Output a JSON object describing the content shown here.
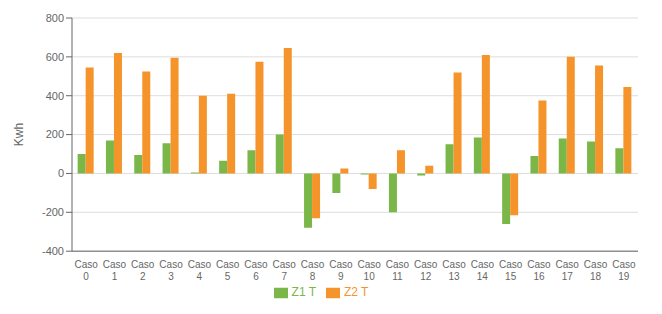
{
  "chart_data": {
    "type": "bar",
    "ylabel": "Kwh",
    "categories": [
      "Caso\n0",
      "Caso\n1",
      "Caso\n2",
      "Caso\n3",
      "Caso\n4",
      "Caso\n5",
      "Caso\n6",
      "Caso\n7",
      "Caso\n8",
      "Caso\n9",
      "Caso\n10",
      "Caso\n11",
      "Caso\n12",
      "Caso\n13",
      "Caso\n14",
      "Caso\n15",
      "Caso\n16",
      "Caso\n17",
      "Caso\n18",
      "Caso\n19"
    ],
    "series": [
      {
        "name": "Z1 T",
        "color": "#7AB648",
        "values": [
          100,
          170,
          95,
          155,
          5,
          65,
          120,
          200,
          -280,
          -100,
          -5,
          -200,
          -10,
          150,
          185,
          -260,
          90,
          180,
          165,
          130
        ]
      },
      {
        "name": "Z2 T",
        "color": "#F4942A",
        "values": [
          545,
          620,
          525,
          595,
          400,
          410,
          575,
          645,
          -230,
          25,
          -80,
          120,
          40,
          520,
          610,
          -215,
          375,
          600,
          555,
          445
        ]
      }
    ],
    "ylim": [
      -400,
      800
    ],
    "yticks": [
      -400,
      -200,
      0,
      200,
      400,
      600,
      800
    ],
    "grid": true,
    "legend": "bottom"
  }
}
